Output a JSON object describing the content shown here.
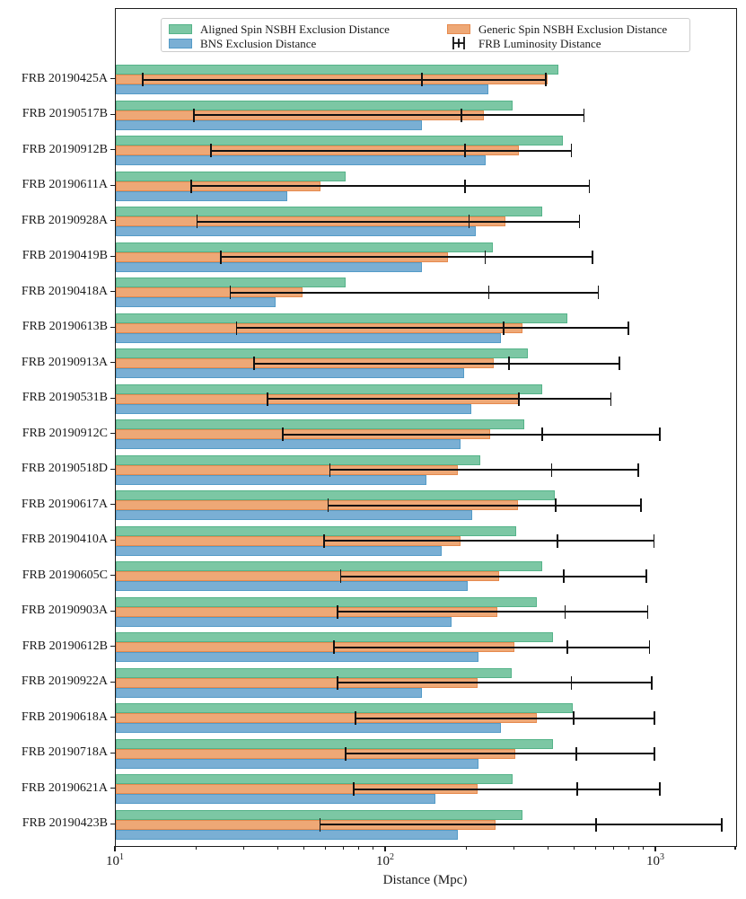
{
  "legend": {
    "items": [
      {
        "key": "aligned",
        "label": "Aligned Spin NSBH Exclusion Distance",
        "type": "patch",
        "color": "#7cc7a4",
        "edge": "#55b389"
      },
      {
        "key": "bns",
        "label": "BNS Exclusion Distance",
        "type": "patch",
        "color": "#7aafd4",
        "edge": "#549bc7"
      },
      {
        "key": "generic",
        "label": "Generic Spin NSBH Exclusion Distance",
        "type": "patch",
        "color": "#eea876",
        "edge": "#e68a4e"
      },
      {
        "key": "frb-luminosity",
        "label": "FRB Luminosity Distance",
        "type": "errorbar",
        "color": "#111111"
      }
    ]
  },
  "chart_data": {
    "type": "bar",
    "orientation": "horizontal",
    "xscale": "log",
    "title": "",
    "xlabel": "Distance (Mpc)",
    "ylabel": "",
    "xlim": [
      10,
      2000
    ],
    "grid": false,
    "legend_position": "upper center, 2 columns",
    "x_major_ticks": [
      10,
      100,
      1000
    ],
    "x_tick_labels": [
      {
        "base": "10",
        "exp": "1"
      },
      {
        "base": "10",
        "exp": "2"
      },
      {
        "base": "10",
        "exp": "3"
      }
    ],
    "categories": [
      "FRB 20190425A",
      "FRB 20190517B",
      "FRB 20190912B",
      "FRB 20190611A",
      "FRB 20190928A",
      "FRB 20190419B",
      "FRB 20190418A",
      "FRB 20190613B",
      "FRB 20190913A",
      "FRB 20190531B",
      "FRB 20190912C",
      "FRB 20190518D",
      "FRB 20190617A",
      "FRB 20190410A",
      "FRB 20190605C",
      "FRB 20190903A",
      "FRB 20190612B",
      "FRB 20190922A",
      "FRB 20190618A",
      "FRB 20190718A",
      "FRB 20190621A",
      "FRB 20190423B"
    ],
    "series": [
      {
        "key": "aligned",
        "name": "Aligned Spin NSBH Exclusion Distance",
        "color": "#7cc7a4",
        "edge": "#55b389",
        "values": [
          435,
          295,
          450,
          71,
          378,
          248,
          71,
          468,
          334,
          378,
          324,
          223,
          420,
          304,
          378,
          362,
          415,
          291,
          490,
          415,
          295,
          320
        ]
      },
      {
        "key": "generic",
        "name": "Generic Spin NSBH Exclusion Distance",
        "color": "#eea876",
        "edge": "#e68a4e",
        "values": [
          395,
          230,
          310,
          57,
          277,
          170,
          49,
          320,
          250,
          310,
          242,
          185,
          308,
          189,
          262,
          258,
          298,
          218,
          362,
          300,
          218,
          254
        ]
      },
      {
        "key": "bns",
        "name": "BNS Exclusion Distance",
        "color": "#7aafd4",
        "edge": "#549bc7",
        "values": [
          240,
          136,
          234,
          43,
          214,
          136,
          39,
          267,
          195,
          206,
          189,
          141,
          208,
          161,
          200,
          175,
          219,
          136,
          267,
          219,
          152,
          185
        ]
      }
    ],
    "errorbars": {
      "name": "FRB Luminosity Distance",
      "color": "#111111",
      "low": [
        12.6,
        19.5,
        22.5,
        19,
        20,
        24.5,
        26.5,
        28,
        32.5,
        36.5,
        41.5,
        62,
        61,
        59,
        68,
        66,
        64,
        66,
        77,
        71,
        76,
        57
      ],
      "mid": [
        136,
        190,
        196,
        196,
        203,
        233,
        240,
        272,
        285,
        310,
        378,
        410,
        425,
        430,
        455,
        460,
        470,
        485,
        495,
        505,
        510,
        600
      ],
      "high": [
        390,
        540,
        485,
        565,
        520,
        580,
        610,
        790,
        730,
        680,
        1030,
        860,
        880,
        980,
        920,
        930,
        945,
        960,
        985,
        985,
        1030,
        1750
      ]
    }
  }
}
